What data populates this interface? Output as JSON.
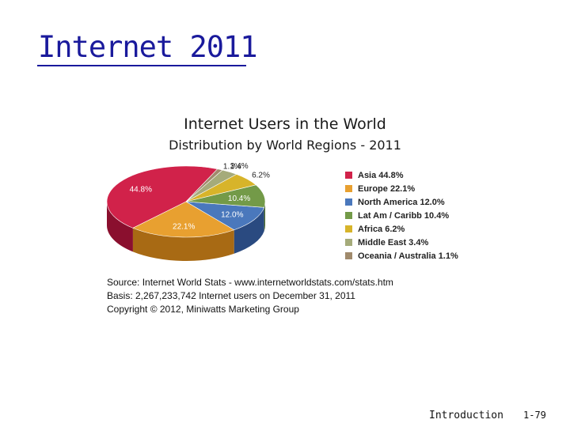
{
  "slide": {
    "title": "Internet 2011",
    "footer_label": "Introduction",
    "page_number": "1-79"
  },
  "chart_data": {
    "type": "pie",
    "title": "Internet Users in the World",
    "subtitle": "Distribution by World Regions - 2011",
    "slices": [
      {
        "name": "Asia",
        "value": 44.8,
        "label": "44.8%",
        "legend": "Asia  44.8%",
        "color": "#d1224a",
        "dark": "#8a0f2e"
      },
      {
        "name": "Europe",
        "value": 22.1,
        "label": "22.1%",
        "legend": "Europe  22.1%",
        "color": "#e8a030",
        "dark": "#a86a14"
      },
      {
        "name": "North America",
        "value": 12.0,
        "label": "12.0%",
        "legend": "North America  12.0%",
        "color": "#4a78bc",
        "dark": "#2a4a80"
      },
      {
        "name": "Lat Am / Caribb",
        "value": 10.4,
        "label": "10.4%",
        "legend": "Lat Am / Caribb  10.4%",
        "color": "#739a48",
        "dark": "#4a6a2a"
      },
      {
        "name": "Africa",
        "value": 6.2,
        "label": "6.2%",
        "legend": "Africa  6.2%",
        "color": "#d7b42a",
        "dark": "#9a7e14"
      },
      {
        "name": "Middle East",
        "value": 3.4,
        "label": "3.4%",
        "legend": "Middle East  3.4%",
        "color": "#a5ab7a",
        "dark": "#727850"
      },
      {
        "name": "Oceania / Australia",
        "value": 1.1,
        "label": "1.1%",
        "legend": "Oceania / Australia  1.1%",
        "color": "#a08a6c",
        "dark": "#6e5c44"
      }
    ],
    "legend_position": "right"
  },
  "source": {
    "line1": "Source: Internet World Stats -  www.internetworldstats.com/stats.htm",
    "line2": "Basis: 2,267,233,742 Internet users on December 31, 2011",
    "line3": "Copyright © 2012, Miniwatts Marketing Group"
  }
}
